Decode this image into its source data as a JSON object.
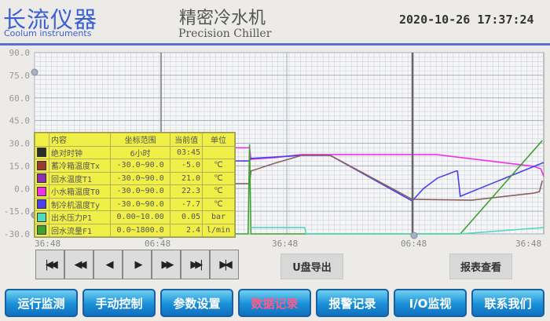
{
  "header": {
    "logo_cn": "长流仪器",
    "logo_en": "Coolum instruments",
    "title_cn": "精密冷水机",
    "title_en": "Precision Chiller",
    "datetime": "2020-10-26 17:37:24",
    "accent": "#3b5fd4"
  },
  "legend": {
    "headers": [
      "内容",
      "坐标范围",
      "当前值",
      "单位"
    ],
    "rows": [
      {
        "name": "绝对时钟",
        "range": "6小时",
        "value": "03:45",
        "unit": "",
        "color": "#2a2f2a"
      },
      {
        "name": "蓄冷箱温度Tx",
        "range": "-30.0~90.0",
        "value": "-5.0",
        "unit": "℃",
        "color": "#9a3a30"
      },
      {
        "name": "回水温度T1",
        "range": "-30.0~90.0",
        "value": "21.0",
        "unit": "℃",
        "color": "#8a30b0"
      },
      {
        "name": "小水箱温度T0",
        "range": "-30.0~90.0",
        "value": "22.3",
        "unit": "℃",
        "color": "#f030e8"
      },
      {
        "name": "制冷机温度Ty",
        "range": "-30.0~90.0",
        "value": "-7.7",
        "unit": "℃",
        "color": "#4a40f0"
      },
      {
        "name": "出水压力P1",
        "range": "0.00~10.00",
        "value": "0.05",
        "unit": "bar",
        "color": "#50d8c0"
      },
      {
        "name": "回水流量F1",
        "range": "0.0~1800.0",
        "value": "2.4",
        "unit": "l/min",
        "color": "#40a030"
      }
    ]
  },
  "chart_data": {
    "type": "line",
    "ylim": [
      -30,
      90
    ],
    "yticks": [
      "90.0",
      "75.0",
      "60.0",
      "45.0",
      "30.0",
      "15.0",
      "0.0",
      "-15.0",
      "-30.0"
    ],
    "xlim": [
      0,
      360
    ],
    "xticks": [
      "36:48",
      "06:48",
      "36:48",
      "06:48",
      "36:48"
    ],
    "grid": true,
    "series": [
      {
        "legend_row": 3,
        "color": "#f030e8",
        "points": [
          [
            130,
            27
          ],
          [
            152,
            27
          ],
          [
            153,
            19.4
          ],
          [
            170,
            20.5
          ],
          [
            189,
            22.5
          ],
          [
            284,
            22.5
          ],
          [
            353,
            14.7
          ],
          [
            358,
            13
          ],
          [
            360,
            8
          ]
        ]
      },
      {
        "legend_row": 4,
        "color": "#4a40f0",
        "points": [
          [
            130,
            18.3
          ],
          [
            152,
            18.3
          ],
          [
            153,
            19.9
          ],
          [
            189,
            22
          ],
          [
            209,
            22
          ],
          [
            267,
            -8.2
          ],
          [
            275,
            0
          ],
          [
            285,
            7
          ],
          [
            298,
            11.6
          ],
          [
            299,
            11.6
          ],
          [
            301,
            -5.1
          ],
          [
            360,
            17.3
          ]
        ]
      },
      {
        "legend_row": 1,
        "color": "#8a6060",
        "points": [
          [
            130,
            3.2
          ],
          [
            152,
            3.2
          ],
          [
            153,
            11.6
          ],
          [
            170,
            16.8
          ],
          [
            189,
            22
          ],
          [
            209,
            22
          ],
          [
            267,
            -7.1
          ],
          [
            309,
            -7.7
          ],
          [
            353,
            -3
          ],
          [
            357,
            -2
          ],
          [
            359,
            5.3
          ]
        ]
      },
      {
        "legend_row": 6,
        "color": "#40a030",
        "points": [
          [
            130,
            -30
          ],
          [
            151,
            -30
          ],
          [
            152,
            29.2
          ],
          [
            153,
            -30
          ],
          [
            301,
            -30
          ],
          [
            359,
            31.8
          ]
        ]
      },
      {
        "legend_row": 5,
        "color": "#50d8c0",
        "points": [
          [
            153,
            -25.8
          ],
          [
            191,
            -25.8
          ],
          [
            192,
            -30
          ],
          [
            301,
            -30
          ],
          [
            360,
            -25.8
          ]
        ]
      }
    ]
  },
  "playback": {
    "buttons": [
      "first",
      "fast-back",
      "back",
      "forward",
      "fast-forward",
      "last",
      "end"
    ],
    "glyphs": [
      "|◀◀",
      "◀◀",
      "◀",
      "▶",
      "▶▶",
      "▶▶|",
      "▶|◀"
    ]
  },
  "actions": {
    "usb_export": "U盘导出",
    "report_view": "报表查看"
  },
  "tabs": [
    {
      "label": "运行监测",
      "active": false
    },
    {
      "label": "手动控制",
      "active": false
    },
    {
      "label": "参数设置",
      "active": false
    },
    {
      "label": "数据记录",
      "active": true
    },
    {
      "label": "报警记录",
      "active": false
    },
    {
      "label": "I/O监视",
      "active": false
    },
    {
      "label": "联系我们",
      "active": false
    }
  ]
}
